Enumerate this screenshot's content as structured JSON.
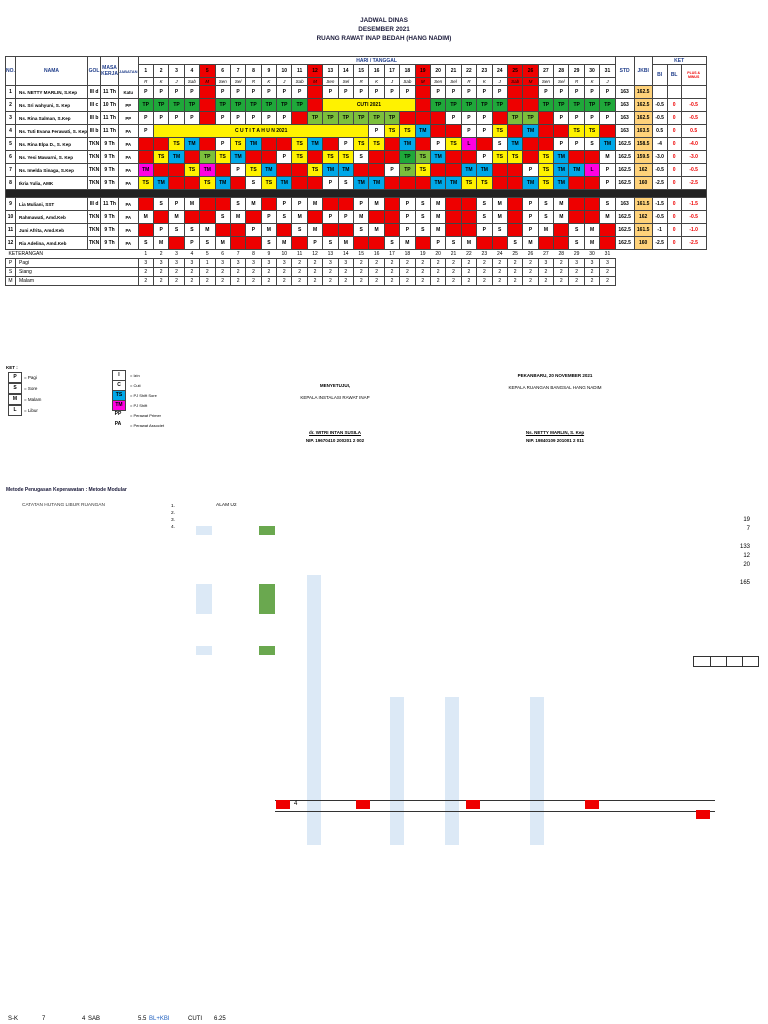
{
  "header": {
    "line1": "JADWAL DINAS",
    "line2": "DESEMBER 2021",
    "line3": "RUANG RAWAT INAP BEDAH (HANG NADIM)"
  },
  "columns": {
    "no": "NO.",
    "nama": "NAMA",
    "gol": "GOL",
    "masa_kerja": "MASA KERJA",
    "jabatan": "JABATAN",
    "hari_tanggal": "HARI / TANGGAL",
    "std": "STD",
    "jkbi": "JKBI",
    "ket": "KET",
    "bl_label": "BI",
    "bl2_label": "BL",
    "plus_minus": "PLUS & MINUS"
  },
  "days": [
    "1",
    "2",
    "3",
    "4",
    "5",
    "6",
    "7",
    "8",
    "9",
    "10",
    "11",
    "12",
    "13",
    "14",
    "15",
    "16",
    "17",
    "18",
    "19",
    "20",
    "21",
    "22",
    "23",
    "24",
    "25",
    "26",
    "27",
    "28",
    "29",
    "30",
    "31"
  ],
  "weekdays": [
    "R",
    "K",
    "J",
    "Sab",
    "M",
    "Sen",
    "Sel",
    "R",
    "K",
    "J",
    "Sab",
    "M",
    "Sen",
    "Sel",
    "R",
    "K",
    "J",
    "Sab",
    "M",
    "Sen",
    "Sel",
    "R",
    "K",
    "J",
    "Sab",
    "M",
    "Sen",
    "Sel",
    "R",
    "K",
    "J"
  ],
  "staff": [
    {
      "no": "1",
      "name": "Ns. NETTY MARLIN, S.Kep",
      "gol": "III d",
      "mk": "11 Th",
      "jab": "Katu",
      "std": "163",
      "jkbi": "162.5",
      "bi": "",
      "bl": "",
      "pm": ""
    },
    {
      "no": "2",
      "name": "Ns. Sri wahyuni, S. Kep",
      "gol": "III c",
      "mk": "10 Th",
      "jab": "PP",
      "std": "163",
      "jkbi": "162.5",
      "bi": "-0.5",
      "bl": "0",
      "pm": "-0.5"
    },
    {
      "no": "3",
      "name": "Ns. Rina Salman, S.Kep",
      "gol": "III b",
      "mk": "11 Th",
      "jab": "PP",
      "std": "163",
      "jkbi": "162.5",
      "bi": "-0.5",
      "bl": "0",
      "pm": "-0.5"
    },
    {
      "no": "4",
      "name": "Ns. Tuti Evana Ferawati, S. Kep",
      "gol": "III b",
      "mk": "11 Th",
      "jab": "PA",
      "std": "163",
      "jkbi": "163.5",
      "bi": "0.5",
      "bl": "0",
      "pm": "0.5"
    },
    {
      "no": "5",
      "name": "Ns. Rina Elpa D., S. Kep",
      "gol": "TKN",
      "mk": "9 Th",
      "jab": "PA",
      "std": "162.5",
      "jkbi": "158.5",
      "bi": "-4",
      "bl": "0",
      "pm": "-4.0"
    },
    {
      "no": "6",
      "name": "Ns. Yesi Mawarni, S. Kep",
      "gol": "TKN",
      "mk": "9 Th",
      "jab": "PA",
      "std": "162.5",
      "jkbi": "159.5",
      "bi": "-3.0",
      "bl": "0",
      "pm": "-3.0"
    },
    {
      "no": "7",
      "name": "Ns. Imelda Sinaga, S.Kep",
      "gol": "TKN",
      "mk": "9 Th",
      "jab": "PA",
      "std": "162.5",
      "jkbi": "162",
      "bi": "-0.5",
      "bl": "0",
      "pm": "-0.5"
    },
    {
      "no": "8",
      "name": "Ikria Yulia, AMK",
      "gol": "TKN",
      "mk": "9 Th",
      "jab": "PA",
      "std": "162.5",
      "jkbi": "160",
      "bi": "-2.5",
      "bl": "0",
      "pm": "-2.5"
    },
    {
      "no": "9",
      "name": "Lia Muliani, SST",
      "gol": "III d",
      "mk": "11 Th",
      "jab": "PA",
      "std": "163",
      "jkbi": "161.5",
      "bi": "-1.5",
      "bl": "0",
      "pm": "-1.5"
    },
    {
      "no": "10",
      "name": "Rahmawati, Amd.Keb",
      "gol": "TKN",
      "mk": "9 Th",
      "jab": "PA",
      "std": "162.5",
      "jkbi": "162",
      "bi": "-0.5",
      "bl": "0",
      "pm": "-0.5"
    },
    {
      "no": "11",
      "name": "Juni Afrita, Amd.Keb",
      "gol": "TKN",
      "mk": "9 Th",
      "jab": "PA",
      "std": "162.5",
      "jkbi": "161.5",
      "bi": "-1",
      "bl": "0",
      "pm": "-1.0"
    },
    {
      "no": "12",
      "name": "Ria Adelina, Amd.Keb",
      "gol": "TKN",
      "mk": "9 Th",
      "jab": "PA",
      "std": "162.5",
      "jkbi": "160",
      "bi": "-2.5",
      "bl": "0",
      "pm": "-2.5"
    }
  ],
  "shifts": [
    [
      "P",
      "P",
      "P",
      "P",
      "L",
      "P",
      "P",
      "P",
      "P",
      "P",
      "P",
      "L",
      "P",
      "P",
      "P",
      "P",
      "P",
      "P",
      "L",
      "P",
      "P",
      "P",
      "P",
      "P",
      "L",
      "L",
      "P",
      "P",
      "P",
      "P",
      "P"
    ],
    [
      "TP",
      "TP",
      "TP",
      "TP",
      "L",
      "TP",
      "TP",
      "TP",
      "TP",
      "TP",
      "TP",
      "L",
      "C",
      "C",
      "C",
      "C",
      "C",
      "C",
      "L",
      "TP",
      "TP",
      "TP",
      "TP",
      "TP",
      "L",
      "L",
      "TP",
      "TP",
      "TP",
      "TP",
      "TP"
    ],
    [
      "P",
      "P",
      "P",
      "P",
      "L",
      "P",
      "P",
      "P",
      "P",
      "P",
      "L",
      "TP",
      "TP",
      "TP",
      "TP",
      "TP",
      "TP",
      "L",
      "L",
      "L",
      "P",
      "P",
      "P",
      "L",
      "TP",
      "TP",
      "L",
      "P",
      "P",
      "P",
      "P"
    ],
    [
      "P",
      "C",
      "C",
      "C",
      "C",
      "C",
      "C",
      "C",
      "C",
      "C",
      "C",
      "C",
      "C",
      "C",
      "C",
      "P",
      "TS",
      "TS",
      "TM",
      "L",
      "L",
      "P",
      "P",
      "TS",
      "L",
      "TM",
      "L",
      "L",
      "TS",
      "TS",
      "L"
    ],
    [
      "L",
      "L",
      "TS",
      "TM",
      "L",
      "P",
      "TS",
      "TM",
      "L",
      "L",
      "TS",
      "TM",
      "L",
      "P",
      "TS",
      "TS",
      "L",
      "TM",
      "L",
      "P",
      "TS",
      "L",
      "L",
      "S",
      "TM",
      "L",
      "L",
      "P",
      "P",
      "S",
      "TM"
    ],
    [
      "L",
      "TS",
      "TM",
      "L",
      "TP",
      "TS",
      "TM",
      "L",
      "L",
      "P",
      "TS",
      "L",
      "TS",
      "TS",
      "S",
      "L",
      "L",
      "TP",
      "TS",
      "TM",
      "L",
      "L",
      "P",
      "TS",
      "TS",
      "L",
      "TS",
      "TM",
      "L",
      "L",
      "M"
    ],
    [
      "TM",
      "L",
      "L",
      "TS",
      "TM",
      "L",
      "P",
      "TS",
      "TM",
      "L",
      "L",
      "TS",
      "TM",
      "TM",
      "L",
      "L",
      "P",
      "TP",
      "TS",
      "L",
      "L",
      "TM",
      "TM",
      "L",
      "L",
      "P",
      "TS",
      "TM",
      "TM",
      "L",
      "P"
    ],
    [
      "TS",
      "TM",
      "L",
      "L",
      "TS",
      "TM",
      "L",
      "S",
      "TS",
      "TM",
      "L",
      "L",
      "P",
      "S",
      "TM",
      "TM",
      "L",
      "L",
      "L",
      "TM",
      "TM",
      "TS",
      "TS",
      "L",
      "L",
      "TM",
      "TS",
      "TM",
      "L",
      "L",
      "P"
    ],
    [
      "L",
      "S",
      "P",
      "M",
      "L",
      "L",
      "S",
      "M",
      "L",
      "P",
      "P",
      "M",
      "L",
      "L",
      "P",
      "M",
      "L",
      "P",
      "S",
      "M",
      "L",
      "L",
      "S",
      "M",
      "L",
      "P",
      "S",
      "M",
      "L",
      "L",
      "S"
    ],
    [
      "M",
      "L",
      "M",
      "L",
      "L",
      "S",
      "M",
      "L",
      "P",
      "S",
      "M",
      "L",
      "P",
      "P",
      "M",
      "L",
      "L",
      "P",
      "S",
      "M",
      "L",
      "L",
      "S",
      "M",
      "L",
      "P",
      "S",
      "M",
      "L",
      "L",
      "M"
    ],
    [
      "L",
      "P",
      "S",
      "S",
      "M",
      "L",
      "L",
      "P",
      "M",
      "L",
      "S",
      "M",
      "L",
      "L",
      "S",
      "M",
      "L",
      "P",
      "S",
      "M",
      "L",
      "L",
      "P",
      "S",
      "L",
      "P",
      "M",
      "L",
      "S",
      "M",
      "L"
    ],
    [
      "S",
      "M",
      "L",
      "P",
      "S",
      "M",
      "L",
      "L",
      "S",
      "M",
      "L",
      "P",
      "S",
      "M",
      "L",
      "L",
      "S",
      "M",
      "L",
      "P",
      "S",
      "M",
      "L",
      "L",
      "S",
      "M",
      "L",
      "L",
      "S",
      "M",
      "L"
    ]
  ],
  "cuti_labels": {
    "row2": "CUTI 2021",
    "row4": "C U T I  T A H U N  2021"
  },
  "keterangan": {
    "title": "KETERANGAN",
    "rows": [
      {
        "code": "P",
        "label": "Pagi",
        "vals": [
          "3",
          "3",
          "3",
          "3",
          "1",
          "3",
          "3",
          "3",
          "3",
          "3",
          "2",
          "2",
          "3",
          "3",
          "2",
          "2",
          "2",
          "2",
          "2",
          "2",
          "2",
          "2",
          "2",
          "2",
          "2",
          "2",
          "3",
          "2",
          "3",
          "3",
          "3"
        ]
      },
      {
        "code": "S",
        "label": "Siang",
        "vals": [
          "2",
          "2",
          "2",
          "2",
          "2",
          "2",
          "2",
          "2",
          "2",
          "2",
          "2",
          "2",
          "2",
          "2",
          "2",
          "2",
          "2",
          "2",
          "2",
          "2",
          "2",
          "2",
          "2",
          "2",
          "2",
          "2",
          "2",
          "2",
          "2",
          "2",
          "2"
        ]
      },
      {
        "code": "M",
        "label": "Malam",
        "vals": [
          "2",
          "2",
          "2",
          "2",
          "2",
          "2",
          "2",
          "2",
          "2",
          "2",
          "2",
          "2",
          "2",
          "2",
          "2",
          "2",
          "2",
          "2",
          "2",
          "2",
          "2",
          "2",
          "2",
          "2",
          "2",
          "2",
          "2",
          "2",
          "2",
          "2",
          "2"
        ]
      }
    ]
  },
  "legend": {
    "title": "KET :",
    "items": [
      {
        "code": "P",
        "text": "= Pagi"
      },
      {
        "code": "S",
        "text": "= Sore"
      },
      {
        "code": "M",
        "text": "= Malam"
      },
      {
        "code": "L",
        "text": "= Libur"
      }
    ],
    "items2": [
      {
        "code": "I",
        "text": "= Izin"
      },
      {
        "code": "C",
        "text": "= Cuti"
      },
      {
        "code": "TS",
        "text": "= PJ Shift Sore"
      },
      {
        "code": "TM",
        "text": "= PJ Shift"
      },
      {
        "code": "PP",
        "text": "= Perawat Primer"
      },
      {
        "code": "PA",
        "text": "= Perawat Associet"
      }
    ]
  },
  "signatures": {
    "date": "PEKANBARU, 20 NOVEMBER 2021",
    "approve": "MENYETUJUI,",
    "left_role": "KEPALA INSTALASI RAWAT INAP",
    "right_role": "KEPALA RUANGAN BANGSAL HANG NADIM",
    "left_name": "dr. WITRI INTAN SUSILA",
    "left_nip": "NIP. 19670410 200201 2 002",
    "right_name": "Ns. NETTY MARLIN, S. Kep",
    "right_nip": "NIP. 19840109 201001 2 011"
  },
  "method": "Metode Penugasan Keperawatan : Metode Modular",
  "catatan": "CATATAN HUTANG LIBUR RUANGAN",
  "list_nums": [
    "1.",
    "2.",
    "3.",
    "4."
  ],
  "alam": "ALAM U2",
  "right_nums": [
    "19",
    "7",
    "133",
    "12",
    "20",
    "165"
  ],
  "box_num": "4",
  "footer": {
    "sk": "S-K",
    "n7": "7",
    "n4": "4",
    "sab": "SAB",
    "n55": "5.5",
    "bl": "BL+KBI",
    "cuti": "CUTI",
    "cuti_val": "6.25"
  }
}
